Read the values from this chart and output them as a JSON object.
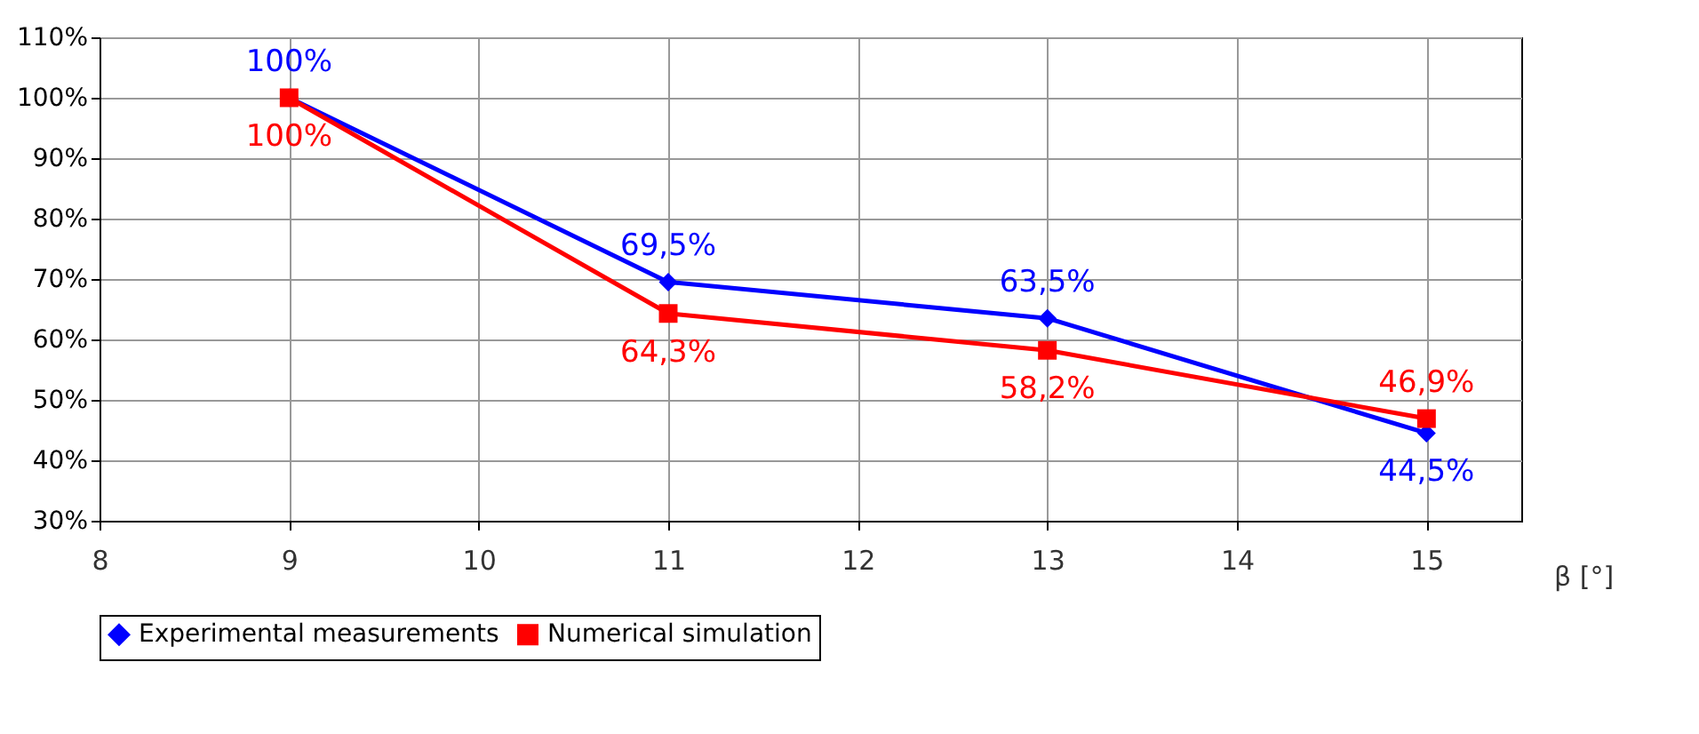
{
  "chart_data": {
    "type": "line",
    "xlabel": "β [°]",
    "x": [
      9,
      11,
      13,
      15
    ],
    "series": [
      {
        "name": "Experimental measurements",
        "color": "#0000ff",
        "marker": "diamond",
        "values": [
          100,
          69.5,
          63.5,
          44.5
        ],
        "value_labels": [
          "100%",
          "69,5%",
          "63,5%",
          "44,5%"
        ]
      },
      {
        "name": "Numerical simulation",
        "color": "#ff0000",
        "marker": "square",
        "values": [
          100,
          64.3,
          58.2,
          46.9
        ],
        "value_labels": [
          "100%",
          "64,3%",
          "58,2%",
          "46,9%"
        ]
      }
    ],
    "xlim": [
      8,
      15.5
    ],
    "xticks": [
      8,
      9,
      10,
      11,
      12,
      13,
      14,
      15
    ],
    "ylim": [
      30,
      110
    ],
    "yticks": [
      {
        "value": 30,
        "label": "30%"
      },
      {
        "value": 40,
        "label": "40%"
      },
      {
        "value": 50,
        "label": "50%"
      },
      {
        "value": 60,
        "label": "60%"
      },
      {
        "value": 70,
        "label": "70%"
      },
      {
        "value": 80,
        "label": "80%"
      },
      {
        "value": 90,
        "label": "90%"
      },
      {
        "value": 100,
        "label": "100%"
      },
      {
        "value": 110,
        "label": "110%"
      }
    ],
    "grid": true,
    "legend": "bottom",
    "line_style": "solid"
  }
}
